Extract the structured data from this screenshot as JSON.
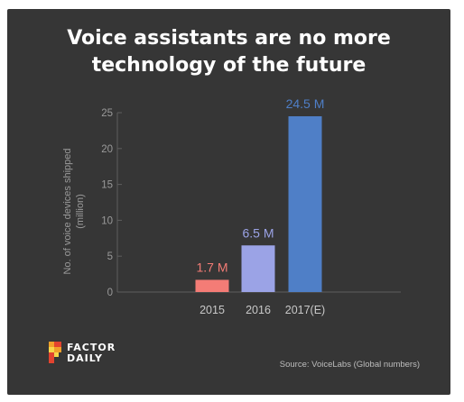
{
  "chart_data": {
    "type": "bar",
    "title_lines": [
      "Voice assistants are no more",
      "technology of the future"
    ],
    "ylabel_lines": [
      "No. of voice devices shipped",
      "(million)"
    ],
    "xlabel": "",
    "categories": [
      "2015",
      "2016",
      "2017(E)"
    ],
    "values": [
      1.7,
      6.5,
      24.5
    ],
    "data_labels": [
      "1.7 M",
      "6.5 M",
      "24.5 M"
    ],
    "colors": [
      "#f47c76",
      "#9ba3e6",
      "#4f7fc7"
    ],
    "ylim": [
      0,
      25
    ],
    "yticks": [
      0,
      5,
      10,
      15,
      20,
      25
    ],
    "grid": false,
    "legend": "none"
  },
  "footer": {
    "brand_line1": "FACTOR",
    "brand_line2": "DAILY",
    "source": "Source: VoiceLabs (Global numbers)"
  },
  "colors": {
    "background": "#363636",
    "axis": "#5e5e5e",
    "logo_orange": "#f0a02a",
    "logo_red": "#e2432f",
    "logo_yellow": "#f6d64a"
  }
}
